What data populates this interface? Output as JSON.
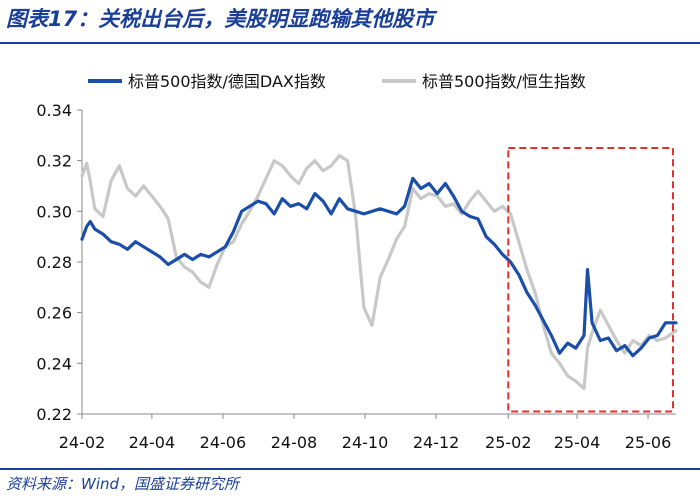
{
  "title": "图表17：关税出台后，美股明显跑输其他股市",
  "source": "资料来源：Wind，国盛证券研究所",
  "colors": {
    "accent": "#1a3f98",
    "series1": "#1a4ea8",
    "series2": "#c8c8c8",
    "highlight_box": "#e03030"
  },
  "chart_data": {
    "type": "line",
    "ylim": [
      0.22,
      0.34
    ],
    "yticks": [
      "0.22",
      "0.24",
      "0.26",
      "0.28",
      "0.30",
      "0.32",
      "0.34"
    ],
    "xticks": [
      "24-02",
      "24-04",
      "24-06",
      "24-08",
      "24-10",
      "24-12",
      "25-02",
      "25-04",
      "25-06"
    ],
    "xrange": [
      "2024-02-01",
      "2025-06-25"
    ],
    "grid": false,
    "legend_position": "top",
    "highlight_region": {
      "x_start": "2025-02-01",
      "x_end": "2025-06-25",
      "y_start": 0.221,
      "y_end": 0.325
    },
    "series": [
      {
        "name": "标普500指数/德国DAX指数",
        "points": [
          [
            "2024-02-01",
            0.289
          ],
          [
            "2024-02-05",
            0.294
          ],
          [
            "2024-02-08",
            0.296
          ],
          [
            "2024-02-12",
            0.293
          ],
          [
            "2024-02-19",
            0.291
          ],
          [
            "2024-02-26",
            0.288
          ],
          [
            "2024-03-04",
            0.287
          ],
          [
            "2024-03-11",
            0.285
          ],
          [
            "2024-03-18",
            0.288
          ],
          [
            "2024-03-25",
            0.286
          ],
          [
            "2024-04-01",
            0.284
          ],
          [
            "2024-04-08",
            0.282
          ],
          [
            "2024-04-15",
            0.279
          ],
          [
            "2024-04-22",
            0.281
          ],
          [
            "2024-04-29",
            0.283
          ],
          [
            "2024-05-06",
            0.281
          ],
          [
            "2024-05-13",
            0.283
          ],
          [
            "2024-05-20",
            0.282
          ],
          [
            "2024-05-27",
            0.284
          ],
          [
            "2024-06-03",
            0.286
          ],
          [
            "2024-06-10",
            0.292
          ],
          [
            "2024-06-17",
            0.3
          ],
          [
            "2024-06-24",
            0.302
          ],
          [
            "2024-07-01",
            0.304
          ],
          [
            "2024-07-08",
            0.303
          ],
          [
            "2024-07-15",
            0.299
          ],
          [
            "2024-07-22",
            0.305
          ],
          [
            "2024-07-29",
            0.302
          ],
          [
            "2024-08-05",
            0.303
          ],
          [
            "2024-08-12",
            0.301
          ],
          [
            "2024-08-19",
            0.307
          ],
          [
            "2024-08-26",
            0.304
          ],
          [
            "2024-09-02",
            0.299
          ],
          [
            "2024-09-09",
            0.305
          ],
          [
            "2024-09-16",
            0.301
          ],
          [
            "2024-09-23",
            0.3
          ],
          [
            "2024-09-30",
            0.299
          ],
          [
            "2024-10-07",
            0.3
          ],
          [
            "2024-10-14",
            0.301
          ],
          [
            "2024-10-21",
            0.3
          ],
          [
            "2024-10-28",
            0.299
          ],
          [
            "2024-11-04",
            0.302
          ],
          [
            "2024-11-11",
            0.313
          ],
          [
            "2024-11-18",
            0.309
          ],
          [
            "2024-11-25",
            0.311
          ],
          [
            "2024-12-02",
            0.307
          ],
          [
            "2024-12-09",
            0.311
          ],
          [
            "2024-12-16",
            0.306
          ],
          [
            "2024-12-23",
            0.3
          ],
          [
            "2024-12-30",
            0.298
          ],
          [
            "2025-01-06",
            0.297
          ],
          [
            "2025-01-13",
            0.29
          ],
          [
            "2025-01-20",
            0.287
          ],
          [
            "2025-01-27",
            0.283
          ],
          [
            "2025-02-03",
            0.28
          ],
          [
            "2025-02-10",
            0.275
          ],
          [
            "2025-02-17",
            0.268
          ],
          [
            "2025-02-24",
            0.263
          ],
          [
            "2025-03-03",
            0.257
          ],
          [
            "2025-03-10",
            0.251
          ],
          [
            "2025-03-17",
            0.244
          ],
          [
            "2025-03-24",
            0.248
          ],
          [
            "2025-03-31",
            0.246
          ],
          [
            "2025-04-07",
            0.251
          ],
          [
            "2025-04-10",
            0.277
          ],
          [
            "2025-04-14",
            0.256
          ],
          [
            "2025-04-21",
            0.249
          ],
          [
            "2025-04-28",
            0.25
          ],
          [
            "2025-05-05",
            0.245
          ],
          [
            "2025-05-12",
            0.247
          ],
          [
            "2025-05-19",
            0.243
          ],
          [
            "2025-05-26",
            0.246
          ],
          [
            "2025-06-02",
            0.25
          ],
          [
            "2025-06-09",
            0.251
          ],
          [
            "2025-06-16",
            0.256
          ],
          [
            "2025-06-25",
            0.256
          ]
        ]
      },
      {
        "name": "标普500指数/恒生指数",
        "points": [
          [
            "2024-02-01",
            0.314
          ],
          [
            "2024-02-05",
            0.319
          ],
          [
            "2024-02-08",
            0.312
          ],
          [
            "2024-02-12",
            0.301
          ],
          [
            "2024-02-19",
            0.298
          ],
          [
            "2024-02-26",
            0.312
          ],
          [
            "2024-03-04",
            0.318
          ],
          [
            "2024-03-11",
            0.309
          ],
          [
            "2024-03-18",
            0.306
          ],
          [
            "2024-03-25",
            0.31
          ],
          [
            "2024-04-01",
            0.306
          ],
          [
            "2024-04-08",
            0.302
          ],
          [
            "2024-04-15",
            0.297
          ],
          [
            "2024-04-22",
            0.282
          ],
          [
            "2024-04-29",
            0.278
          ],
          [
            "2024-05-06",
            0.276
          ],
          [
            "2024-05-13",
            0.272
          ],
          [
            "2024-05-20",
            0.27
          ],
          [
            "2024-05-27",
            0.279
          ],
          [
            "2024-06-03",
            0.286
          ],
          [
            "2024-06-10",
            0.288
          ],
          [
            "2024-06-17",
            0.295
          ],
          [
            "2024-06-24",
            0.3
          ],
          [
            "2024-07-01",
            0.306
          ],
          [
            "2024-07-08",
            0.313
          ],
          [
            "2024-07-15",
            0.32
          ],
          [
            "2024-07-22",
            0.318
          ],
          [
            "2024-07-29",
            0.314
          ],
          [
            "2024-08-05",
            0.311
          ],
          [
            "2024-08-12",
            0.317
          ],
          [
            "2024-08-19",
            0.32
          ],
          [
            "2024-08-26",
            0.316
          ],
          [
            "2024-09-02",
            0.318
          ],
          [
            "2024-09-09",
            0.322
          ],
          [
            "2024-09-16",
            0.32
          ],
          [
            "2024-09-23",
            0.298
          ],
          [
            "2024-09-30",
            0.262
          ],
          [
            "2024-10-07",
            0.255
          ],
          [
            "2024-10-14",
            0.274
          ],
          [
            "2024-10-21",
            0.281
          ],
          [
            "2024-10-28",
            0.289
          ],
          [
            "2024-11-04",
            0.294
          ],
          [
            "2024-11-11",
            0.309
          ],
          [
            "2024-11-18",
            0.305
          ],
          [
            "2024-11-25",
            0.307
          ],
          [
            "2024-12-02",
            0.306
          ],
          [
            "2024-12-09",
            0.302
          ],
          [
            "2024-12-16",
            0.303
          ],
          [
            "2024-12-23",
            0.299
          ],
          [
            "2024-12-30",
            0.304
          ],
          [
            "2025-01-06",
            0.308
          ],
          [
            "2025-01-13",
            0.304
          ],
          [
            "2025-01-20",
            0.3
          ],
          [
            "2025-01-27",
            0.302
          ],
          [
            "2025-02-03",
            0.299
          ],
          [
            "2025-02-10",
            0.288
          ],
          [
            "2025-02-17",
            0.277
          ],
          [
            "2025-02-24",
            0.268
          ],
          [
            "2025-03-03",
            0.255
          ],
          [
            "2025-03-10",
            0.244
          ],
          [
            "2025-03-17",
            0.24
          ],
          [
            "2025-03-24",
            0.235
          ],
          [
            "2025-03-31",
            0.233
          ],
          [
            "2025-04-07",
            0.23
          ],
          [
            "2025-04-10",
            0.246
          ],
          [
            "2025-04-14",
            0.252
          ],
          [
            "2025-04-21",
            0.261
          ],
          [
            "2025-04-28",
            0.255
          ],
          [
            "2025-05-05",
            0.249
          ],
          [
            "2025-05-12",
            0.244
          ],
          [
            "2025-05-19",
            0.249
          ],
          [
            "2025-05-26",
            0.247
          ],
          [
            "2025-06-02",
            0.251
          ],
          [
            "2025-06-09",
            0.249
          ],
          [
            "2025-06-16",
            0.25
          ],
          [
            "2025-06-25",
            0.253
          ]
        ]
      }
    ]
  }
}
